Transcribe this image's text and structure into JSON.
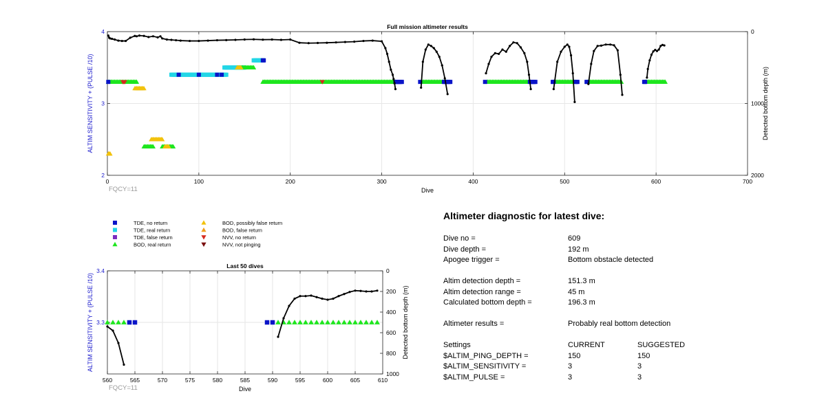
{
  "colors": {
    "tde_no_return": "#0a14c8",
    "tde_real_return": "#22d6e6",
    "tde_false_return": "#7b2cbf",
    "bod_real_return": "#1ee61e",
    "bod_possibly_false": "#f2c20c",
    "bod_false_return": "#f0a020",
    "nvv_no_return": "#d62a1e",
    "nvv_not_pinging": "#7a0f0f",
    "axis_left": "#1a1acc",
    "fqcy": "#999999",
    "depth_line": "#000000",
    "grid": "#e6e6e6"
  },
  "chart_data": [
    {
      "type": "scatter",
      "title": "Full mission altimeter results",
      "xlabel": "Dive",
      "ylabel": "ALTIM SENSITIVITY + (PULSE /10)",
      "y2label": "Detected bottom depth (m)",
      "xlim": [
        0,
        700
      ],
      "ylim": [
        2,
        4
      ],
      "y2lim": [
        0,
        2000
      ],
      "y2_reversed": true,
      "grid": true,
      "xticks": [
        "0",
        "100",
        "200",
        "300",
        "400",
        "500",
        "600",
        "700"
      ],
      "yticks": [
        "2",
        "3",
        "4"
      ],
      "y2ticks": [
        "0",
        "1000",
        "2000"
      ],
      "note": "FQCY=11",
      "markers": [
        {
          "key": "bod_real_return",
          "shape": "tri",
          "y": 3.3,
          "ranges": [
            [
              1,
              32
            ],
            [
              170,
              315
            ],
            [
              345,
              372
            ],
            [
              415,
              462
            ],
            [
              488,
              512
            ],
            [
              525,
              562
            ],
            [
              588,
              610
            ]
          ]
        },
        {
          "key": "tde_no_return",
          "shape": "sq",
          "y": 3.3,
          "ranges": [
            [
              1,
              1
            ],
            [
              315,
              322
            ],
            [
              342,
              342
            ],
            [
              368,
              375
            ],
            [
              413,
              413
            ],
            [
              462,
              468
            ],
            [
              487,
              488
            ],
            [
              512,
              514
            ],
            [
              524,
              525
            ],
            [
              587,
              588
            ]
          ]
        },
        {
          "key": "nvv_no_return",
          "shape": "tridown",
          "y": 3.3,
          "ranges": [
            [
              17,
              19
            ],
            [
              235,
              235
            ]
          ]
        },
        {
          "key": "bod_possibly_false",
          "shape": "tri",
          "y": 3.21,
          "ranges": [
            [
              30,
              40
            ]
          ]
        },
        {
          "key": "tde_real_return",
          "shape": "sq",
          "y": 3.4,
          "ranges": [
            [
              70,
              130
            ]
          ]
        },
        {
          "key": "tde_no_return",
          "shape": "sq",
          "y": 3.4,
          "ranges": [
            [
              78,
              78
            ],
            [
              100,
              100
            ],
            [
              120,
              120
            ],
            [
              125,
              125
            ]
          ]
        },
        {
          "key": "tde_real_return",
          "shape": "sq",
          "y": 3.5,
          "ranges": [
            [
              128,
              150
            ]
          ]
        },
        {
          "key": "bod_real_return",
          "shape": "tri",
          "y": 3.5,
          "ranges": [
            [
              142,
              160
            ]
          ]
        },
        {
          "key": "bod_possibly_false",
          "shape": "tri",
          "y": 3.5,
          "ranges": [
            [
              142,
              146
            ]
          ]
        },
        {
          "key": "tde_real_return",
          "shape": "sq",
          "y": 3.6,
          "ranges": [
            [
              160,
              170
            ]
          ]
        },
        {
          "key": "tde_no_return",
          "shape": "sq",
          "y": 3.6,
          "ranges": [
            [
              170,
              171
            ]
          ]
        },
        {
          "key": "bod_possibly_false",
          "shape": "tri",
          "y": 2.5,
          "ranges": [
            [
              48,
              60
            ]
          ]
        },
        {
          "key": "bod_real_return",
          "shape": "tri",
          "y": 2.4,
          "ranges": [
            [
              40,
              50
            ],
            [
              60,
              72
            ]
          ]
        },
        {
          "key": "bod_possibly_false",
          "shape": "tri",
          "y": 2.4,
          "ranges": [
            [
              63,
              67
            ]
          ]
        },
        {
          "key": "bod_possibly_false",
          "shape": "tri",
          "y": 2.3,
          "ranges": [
            [
              1,
              3
            ]
          ]
        }
      ],
      "depth_series": [
        {
          "x": [
            1,
            2,
            3,
            5,
            8,
            12,
            16,
            20,
            25,
            30,
            32,
            35,
            40,
            45,
            50,
            55,
            58,
            60,
            65,
            70,
            75,
            80,
            90,
            100,
            110,
            120,
            130,
            140,
            150,
            160,
            170,
            180,
            190,
            200,
            210,
            220,
            230,
            240,
            250,
            260,
            270,
            280,
            290,
            300,
            304,
            306,
            308,
            310,
            312,
            313,
            314,
            315
          ],
          "y": [
            55,
            85,
            95,
            100,
            110,
            125,
            130,
            130,
            85,
            60,
            65,
            55,
            60,
            75,
            65,
            80,
            65,
            95,
            110,
            115,
            120,
            125,
            130,
            130,
            125,
            120,
            118,
            115,
            110,
            108,
            112,
            110,
            115,
            110,
            155,
            160,
            158,
            155,
            150,
            145,
            140,
            130,
            125,
            135,
            230,
            310,
            420,
            530,
            600,
            660,
            720,
            800
          ]
        },
        {
          "x": [
            343,
            345,
            348,
            351,
            354,
            357,
            360,
            363,
            366,
            369,
            372
          ],
          "y": [
            780,
            420,
            250,
            180,
            200,
            230,
            280,
            350,
            470,
            650,
            870
          ]
        },
        {
          "x": [
            414,
            417,
            420,
            424,
            428,
            432,
            436,
            440,
            444,
            448,
            452,
            456,
            459,
            461,
            463
          ],
          "y": [
            580,
            450,
            350,
            300,
            310,
            250,
            280,
            200,
            150,
            160,
            220,
            300,
            420,
            600,
            800
          ]
        },
        {
          "x": [
            488,
            492,
            496,
            500,
            503,
            505,
            507,
            509,
            511
          ],
          "y": [
            800,
            420,
            280,
            210,
            180,
            210,
            330,
            580,
            980
          ]
        },
        {
          "x": [
            526,
            529,
            532,
            536,
            540,
            545,
            550,
            554,
            558,
            561,
            563
          ],
          "y": [
            730,
            450,
            270,
            200,
            195,
            180,
            180,
            190,
            260,
            600,
            880
          ]
        },
        {
          "x": [
            590,
            591,
            593,
            595,
            597,
            599,
            601,
            603,
            605,
            607,
            609
          ],
          "y": [
            640,
            520,
            400,
            320,
            275,
            255,
            270,
            250,
            200,
            185,
            192
          ]
        }
      ]
    },
    {
      "type": "scatter",
      "title": "Last 50 dives",
      "xlabel": "Dive",
      "ylabel": "ALTIM SENSITIVITY + (PULSE /10)",
      "y2label": "Detected bottom depth (m)",
      "xlim": [
        560,
        610
      ],
      "ylim": [
        3.2,
        3.4
      ],
      "y2lim": [
        0,
        1000
      ],
      "y2_reversed": true,
      "grid": true,
      "xticks": [
        "560",
        "565",
        "570",
        "575",
        "580",
        "585",
        "590",
        "595",
        "600",
        "605",
        "610"
      ],
      "yticks": [
        "3.3",
        "3.4"
      ],
      "y2ticks": [
        "0",
        "200",
        "400",
        "600",
        "800",
        "1000"
      ],
      "note": "FQCY=11",
      "markers": [
        {
          "key": "bod_real_return",
          "shape": "tri",
          "y": 3.3,
          "points": [
            560,
            561,
            562,
            563,
            591,
            592,
            593,
            594,
            595,
            596,
            597,
            598,
            599,
            600,
            601,
            602,
            603,
            604,
            605,
            606,
            607,
            608,
            609
          ]
        },
        {
          "key": "tde_no_return",
          "shape": "sq",
          "y": 3.3,
          "points": [
            564,
            565,
            589,
            590
          ]
        }
      ],
      "depth_series": [
        {
          "x": [
            560,
            561,
            562,
            563
          ],
          "y": [
            540,
            580,
            700,
            910
          ]
        },
        {
          "x": [
            591,
            592,
            593,
            594,
            595,
            596,
            597,
            598,
            599,
            600,
            601,
            602,
            603,
            604,
            605,
            606,
            607,
            608,
            609
          ],
          "y": [
            640,
            460,
            340,
            270,
            245,
            245,
            240,
            255,
            270,
            280,
            270,
            245,
            225,
            205,
            192,
            195,
            200,
            200,
            192
          ]
        }
      ]
    }
  ],
  "legend": [
    {
      "key": "tde_no_return",
      "shape": "sq",
      "label": "TDE, no return"
    },
    {
      "key": "tde_real_return",
      "shape": "sq",
      "label": "TDE, real return"
    },
    {
      "key": "tde_false_return",
      "shape": "sq",
      "label": "TDE, false return"
    },
    {
      "key": "bod_real_return",
      "shape": "tri",
      "label": "BOD, real return"
    },
    {
      "key": "bod_possibly_false",
      "shape": "tri",
      "label": "BOD, possibly false return"
    },
    {
      "key": "bod_false_return",
      "shape": "tri",
      "label": "BOD, false return"
    },
    {
      "key": "nvv_no_return",
      "shape": "tridown",
      "label": "NVV, no return"
    },
    {
      "key": "nvv_not_pinging",
      "shape": "tridown",
      "label": "NVV, not pinging"
    }
  ],
  "diagnostic": {
    "title": "Altimeter diagnostic for latest dive:",
    "dive_no_label": "Dive no =",
    "dive_no": "609",
    "dive_depth_label": "Dive depth =",
    "dive_depth": "192 m",
    "apogee_label": "Apogee trigger =",
    "apogee": "Bottom obstacle detected",
    "altim_det_depth_label": "Altim detection depth =",
    "altim_det_depth": "151.3 m",
    "altim_det_range_label": "Altim detection range =",
    "altim_det_range": "45 m",
    "calc_bottom_label": "Calculated bottom depth =",
    "calc_bottom": "196.3 m",
    "results_label": "Altimeter results =",
    "results": "Probably real bottom detection",
    "settings_label": "Settings",
    "current_label": "CURRENT",
    "suggested_label": "SUGGESTED",
    "ping_depth_label": "$ALTIM_PING_DEPTH =",
    "ping_depth_current": "150",
    "ping_depth_suggested": "150",
    "sensitivity_label": "$ALTIM_SENSITIVITY =",
    "sensitivity_current": "3",
    "sensitivity_suggested": "3",
    "pulse_label": "$ALTIM_PULSE =",
    "pulse_current": "3",
    "pulse_suggested": "3"
  }
}
